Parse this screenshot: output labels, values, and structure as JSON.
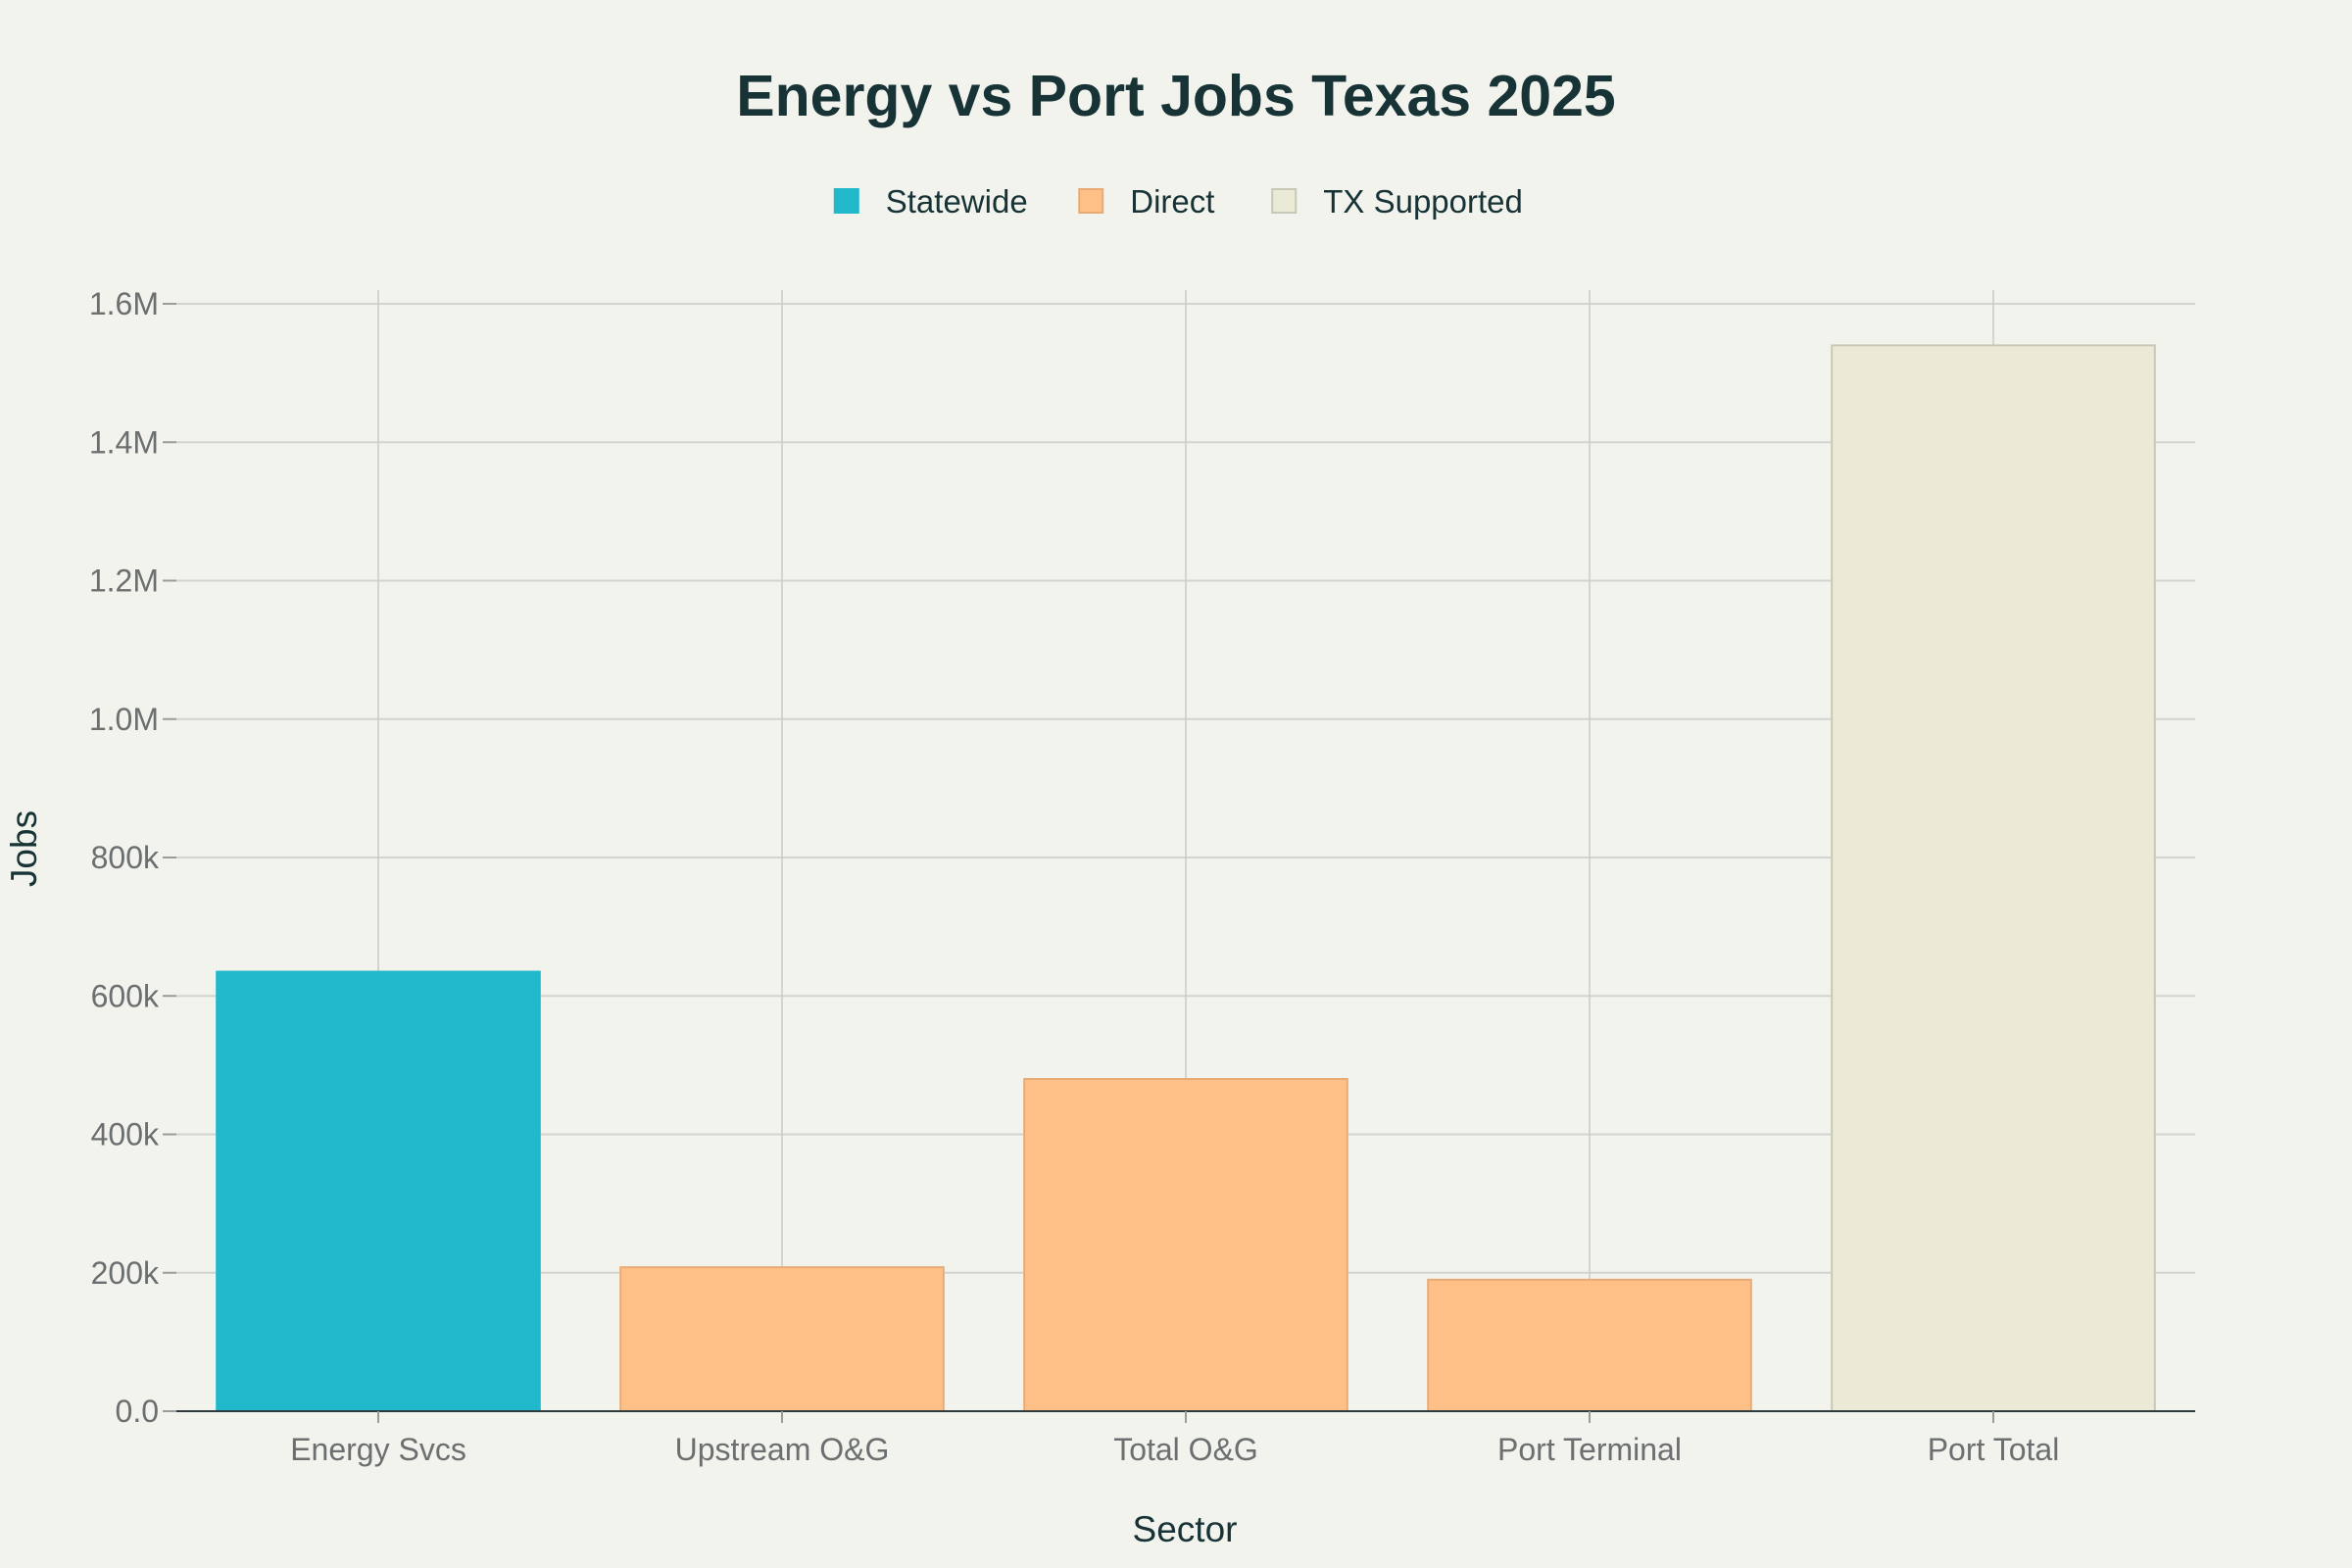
{
  "chart_data": {
    "type": "bar",
    "title": "Energy vs Port Jobs Texas 2025",
    "xlabel": "Sector",
    "ylabel": "Jobs",
    "ylim": [
      0,
      1600000
    ],
    "yticks": [
      0,
      200000,
      400000,
      600000,
      800000,
      1000000,
      1200000,
      1400000,
      1600000
    ],
    "ytick_labels": [
      "0.0",
      "200k",
      "400k",
      "600k",
      "800k",
      "1.0M",
      "1.2M",
      "1.4M",
      "1.6M"
    ],
    "categories": [
      "Energy Svcs",
      "Upstream O&G",
      "Total O&G",
      "Port Terminal",
      "Port Total"
    ],
    "series": [
      {
        "name": "Statewide",
        "color": "#22b8cc",
        "values": [
          635000,
          null,
          null,
          null,
          null
        ]
      },
      {
        "name": "Direct",
        "color": "#ffc087",
        "values": [
          null,
          208000,
          480000,
          190000,
          null
        ]
      },
      {
        "name": "TX Supported",
        "color": "#ebead6",
        "values": [
          null,
          null,
          null,
          null,
          1540000
        ]
      }
    ],
    "grid": true,
    "legend_position": "top-center"
  }
}
